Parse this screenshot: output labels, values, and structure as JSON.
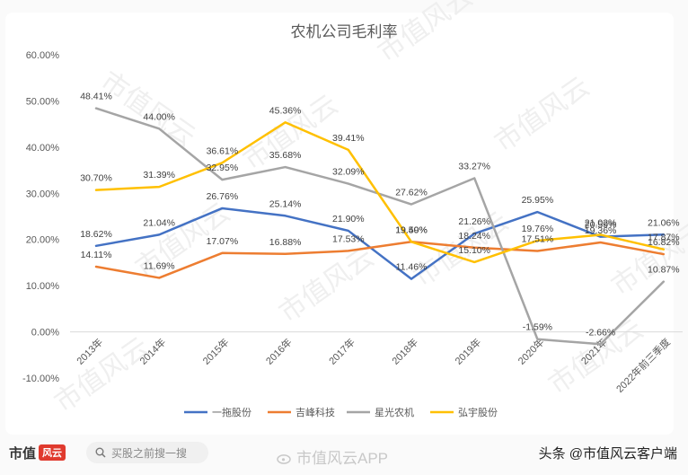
{
  "chart_data": {
    "type": "line",
    "title": "农机公司毛利率",
    "categories": [
      "2013年",
      "2014年",
      "2015年",
      "2016年",
      "2017年",
      "2018年",
      "2019年",
      "2020年",
      "2021年",
      "2022年前三季度"
    ],
    "ylim": [
      -10,
      60
    ],
    "yticks": [
      "60.00%",
      "50.00%",
      "40.00%",
      "30.00%",
      "20.00%",
      "10.00%",
      "0.00%",
      "-10.00%"
    ],
    "ytick_values": [
      60,
      50,
      40,
      30,
      20,
      10,
      0,
      -10
    ],
    "grid": false,
    "legend_position": "bottom",
    "series": [
      {
        "name": "一拖股份",
        "color": "#4472c4",
        "values": [
          18.62,
          21.04,
          26.76,
          25.14,
          21.9,
          11.46,
          21.26,
          25.95,
          20.59,
          21.06
        ],
        "labels": [
          "18.62%",
          "21.04%",
          "26.76%",
          "25.14%",
          "21.90%",
          "11.46%",
          "21.26%",
          "25.95%",
          "20.59%",
          "21.06%"
        ]
      },
      {
        "name": "吉峰科技",
        "color": "#ed7d31",
        "values": [
          14.11,
          11.69,
          17.07,
          16.88,
          17.53,
          19.5,
          18.24,
          17.51,
          19.36,
          16.82
        ],
        "labels": [
          "14.11%",
          "11.69%",
          "17.07%",
          "16.88%",
          "17.53%",
          "19.50%",
          "18.24%",
          "17.51%",
          "19.36%",
          "16.82%"
        ]
      },
      {
        "name": "星光农机",
        "color": "#a5a5a5",
        "values": [
          48.41,
          44.0,
          32.95,
          35.68,
          32.09,
          27.62,
          33.27,
          -1.59,
          -2.66,
          10.87
        ],
        "labels": [
          "48.41%",
          "44.00%",
          "32.95%",
          "35.68%",
          "32.09%",
          "27.62%",
          "33.27%",
          "-1.59%",
          "-2.66%",
          "10.87%"
        ]
      },
      {
        "name": "弘宇股份",
        "color": "#ffc000",
        "values": [
          30.7,
          31.39,
          36.61,
          45.36,
          39.41,
          19.49,
          15.1,
          19.76,
          21.02,
          17.87
        ],
        "labels": [
          "30.70%",
          "31.39%",
          "36.61%",
          "45.36%",
          "39.41%",
          "19.49%",
          "15.10%",
          "19.76%",
          "21.02%",
          "17.87%"
        ]
      }
    ]
  },
  "watermark": "市值风云",
  "footer": {
    "brand": "市值",
    "brand_logo": "风云",
    "search_placeholder": "买股之前搜一搜",
    "app_watermark": "市值风云APP",
    "author": "头条 @市值风云客户端"
  }
}
